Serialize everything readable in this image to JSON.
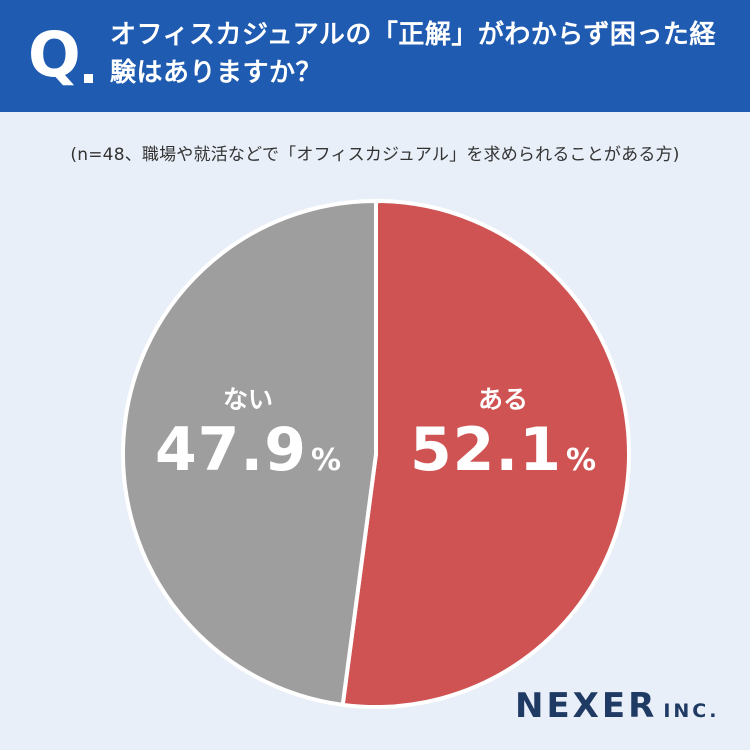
{
  "header": {
    "q_mark": "Q",
    "title": "オフィスカジュアルの「正解」がわからず困った経験はありますか？"
  },
  "note": "(n=48、職場や就活などで「オフィスカジュアル」を求められることがある方)",
  "chart_data": {
    "type": "pie",
    "slices": [
      {
        "label": "ある",
        "value": 52.1,
        "display": "52.1",
        "unit": "%",
        "color": "#cf5352"
      },
      {
        "label": "ない",
        "value": 47.9,
        "display": "47.9",
        "unit": "%",
        "color": "#9e9e9e"
      }
    ],
    "start_angle": "12 o'clock",
    "direction": "clockwise"
  },
  "logo": {
    "main": "NEXER",
    "suffix": "INC."
  },
  "colors": {
    "header_bg": "#1f5bb0",
    "background": "#e9eff8",
    "logo": "#1f3a63"
  }
}
